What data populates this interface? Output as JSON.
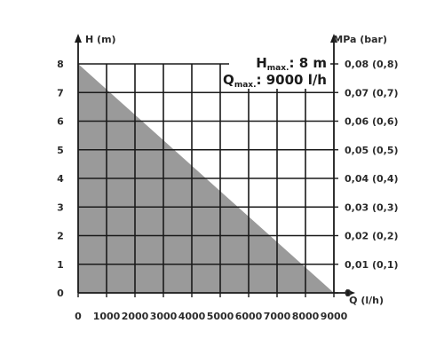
{
  "chart_data": {
    "type": "area",
    "xlabel": "Q (l/h)",
    "ylabel_left": "H (m)",
    "ylabel_right": "MPa (bar)",
    "x_ticks": [
      "0",
      "1000",
      "2000",
      "3000",
      "4000",
      "5000",
      "6000",
      "7000",
      "8000",
      "9000"
    ],
    "y_ticks_left": [
      "0",
      "1",
      "2",
      "3",
      "4",
      "5",
      "6",
      "7",
      "8"
    ],
    "y_ticks_right": [
      "0",
      "0,01 (0,1)",
      "0,02 (0,2)",
      "0,03 (0,3)",
      "0,04 (0,4)",
      "0,05 (0,5)",
      "0,06 (0,6)",
      "0,07 (0,7)",
      "0,08 (0,8)"
    ],
    "xlim": [
      0,
      9000
    ],
    "ylim": [
      0,
      8
    ],
    "grid": true,
    "series": [
      {
        "x": [
          0,
          9000
        ],
        "y": [
          8,
          0
        ]
      }
    ],
    "annotations": {
      "hmax_main": "H",
      "hmax_sub": "max.",
      "hmax_value": ": 8 m",
      "qmax_main": "Q",
      "qmax_sub": "max.",
      "qmax_value": ": 9000 l/h"
    },
    "colors": {
      "fill": "#9a9a9a",
      "grid": "#1a1a1a",
      "axis": "#1a1a1a",
      "text": "#2b2b2b"
    }
  }
}
